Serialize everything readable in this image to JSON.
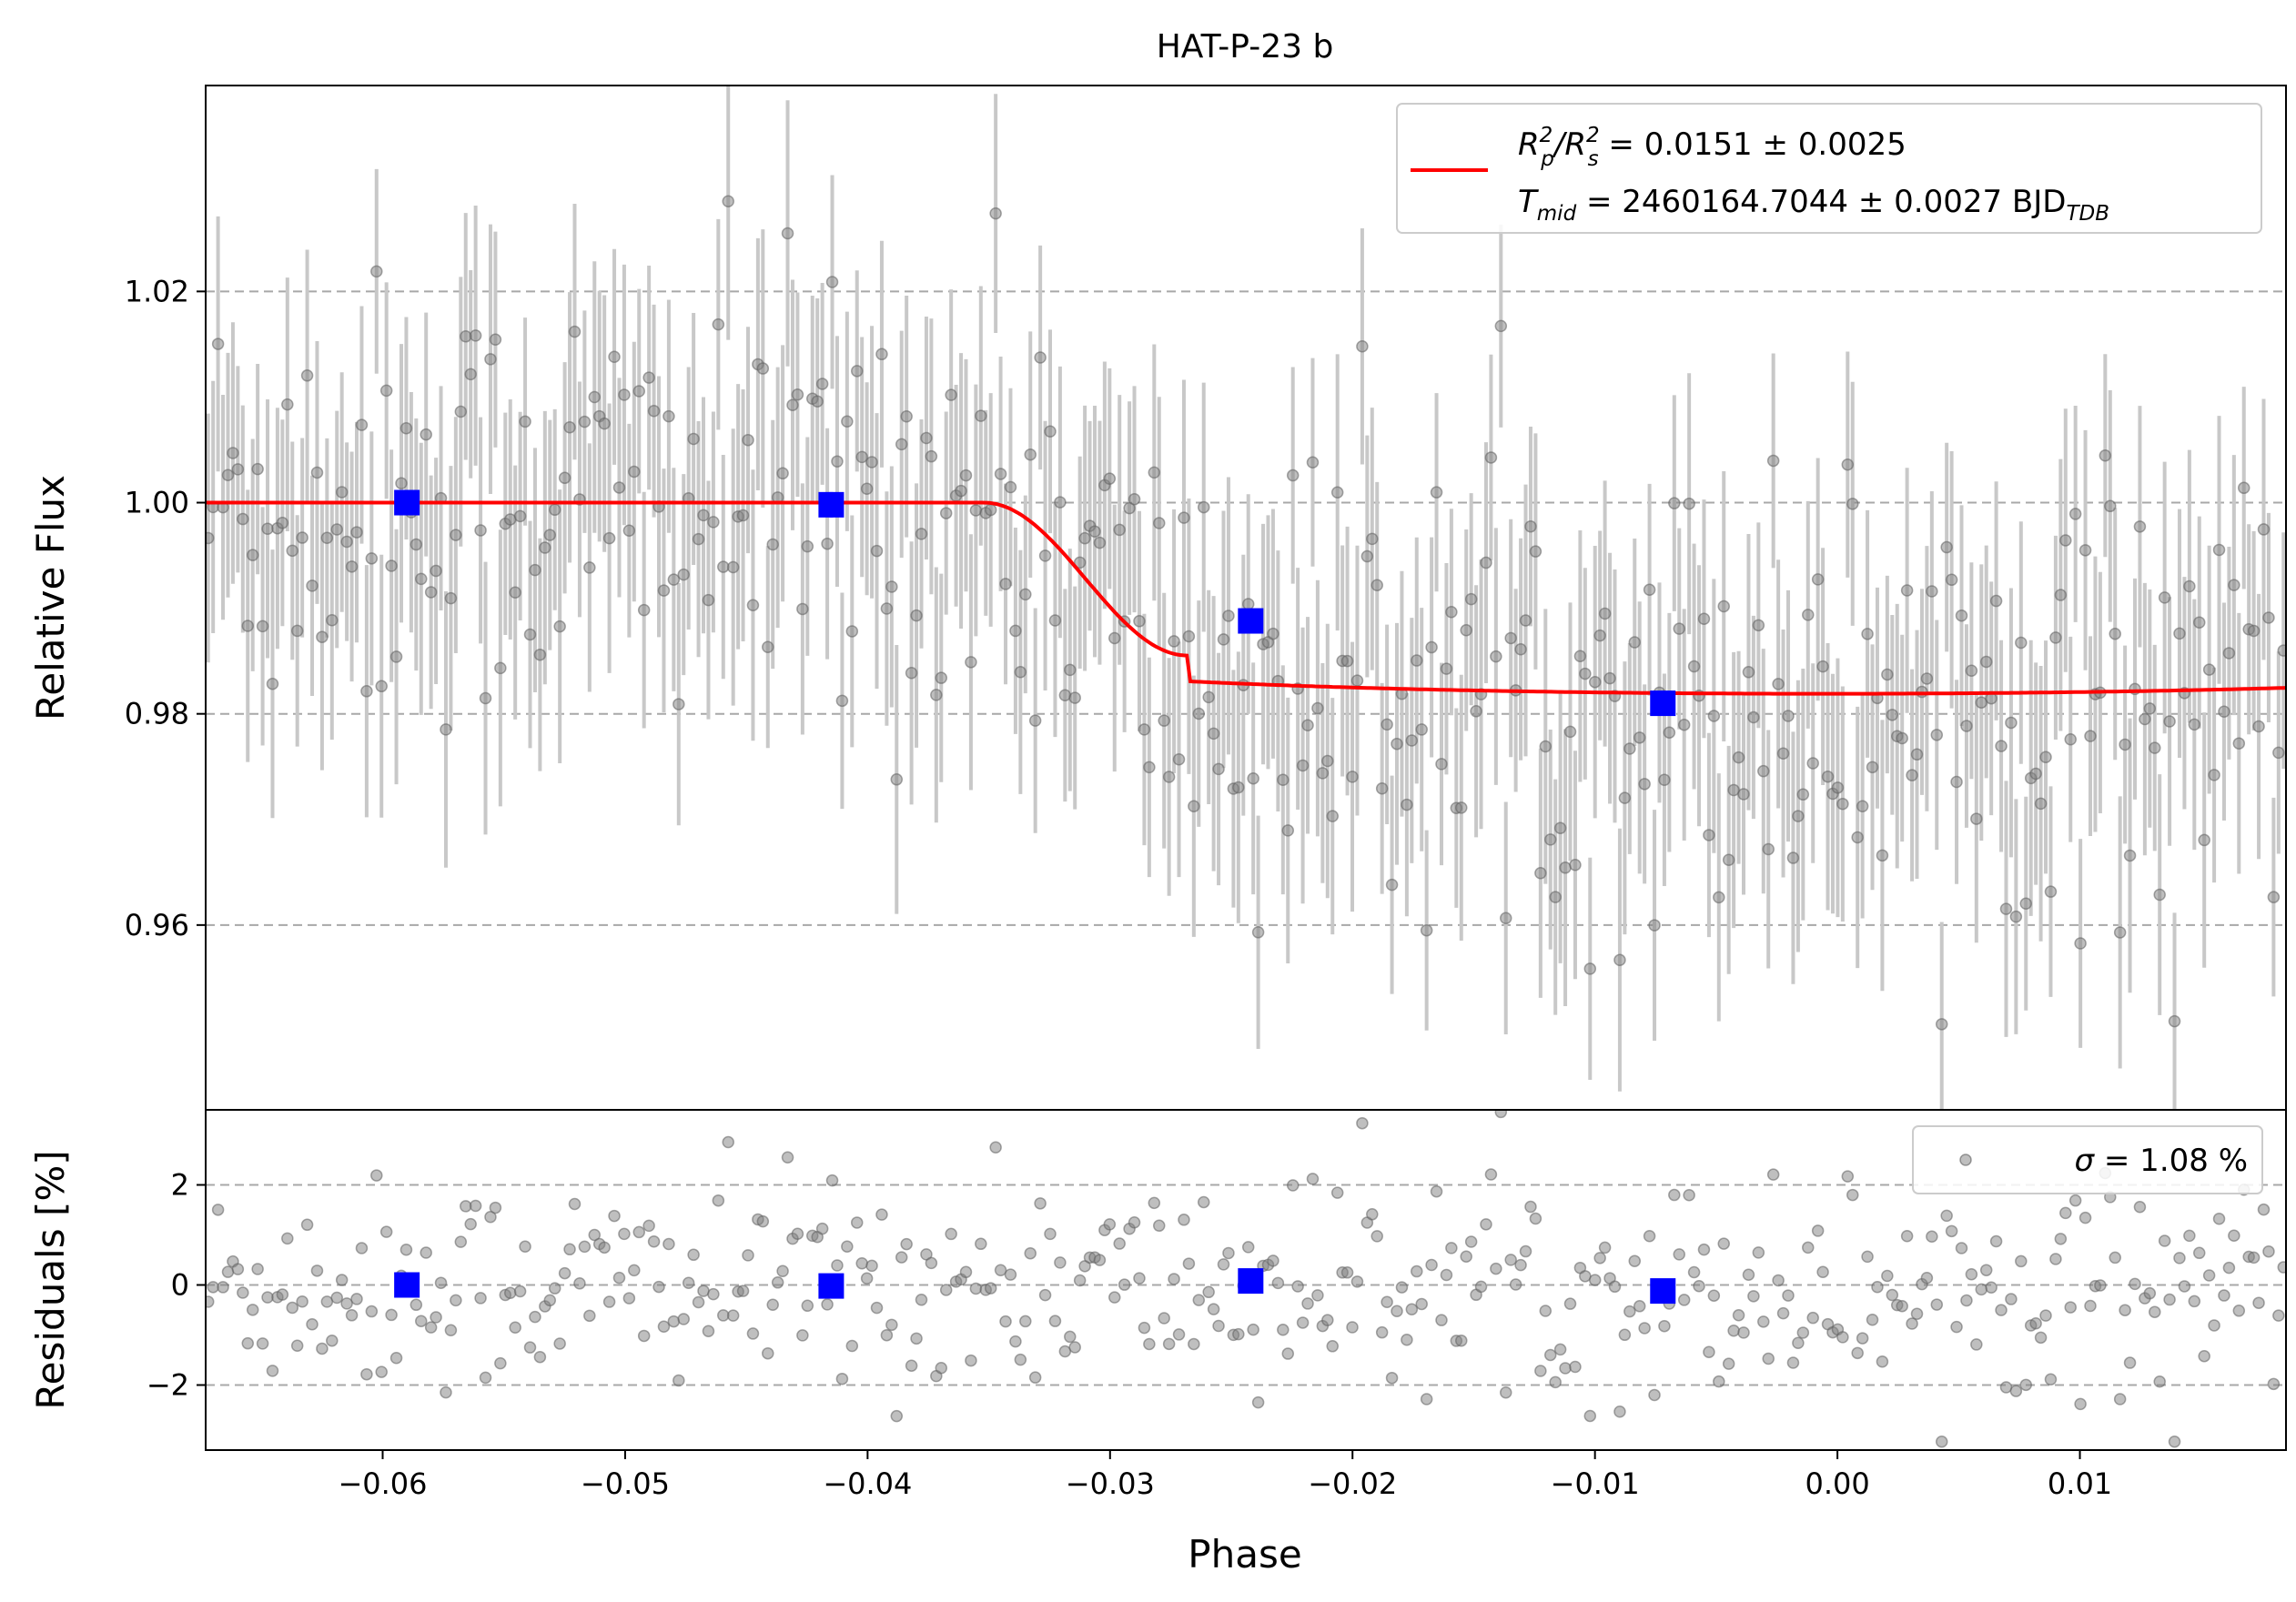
{
  "title": "HAT-P-23 b",
  "colors": {
    "model": "#ff0000",
    "binned": "#0000ff",
    "points": "#808080",
    "errorbars": "#c8c8c8",
    "grid": "#a8a8a8"
  },
  "chart_data": [
    {
      "type": "scatter",
      "panel": "top",
      "title": "HAT-P-23 b",
      "xlabel": "",
      "ylabel": "Relative Flux",
      "xlim": [
        -0.0673,
        0.0185
      ],
      "ylim": [
        0.9425,
        1.0395
      ],
      "yticks": [
        0.96,
        0.98,
        1.0,
        1.02
      ],
      "ytick_labels": [
        "0.96",
        "0.98",
        "1.00",
        "1.02"
      ],
      "grid": "horizontal dashed",
      "legend_position": "top-right",
      "legend": {
        "line1_main": "R",
        "line1_sub1": "p",
        "line1_sup1": "2",
        "line1_mid": "/R",
        "line1_sub2": "s",
        "line1_sup2": "2",
        "line1_rest": " = 0.0151 ± 0.0025",
        "line2_main": "T",
        "line2_sub": "mid",
        "line2_rest": " = 2460164.7044 ± 0.0027 BJD",
        "line2_sub2": "TDB"
      },
      "model": {
        "depth": 0.0181,
        "ingress_start": -0.0352,
        "ingress_end": -0.0268,
        "center": -0.0005,
        "baseline": 1.0
      },
      "raw_points": {
        "count": 420,
        "x_range": [
          -0.0673,
          0.0185
        ],
        "scatter_sigma": 0.0108,
        "errorbar_halfwidth": 0.011
      },
      "binned": [
        {
          "x": -0.059,
          "y": 1.0
        },
        {
          "x": -0.0415,
          "y": 0.9998
        },
        {
          "x": -0.0242,
          "y": 0.9888
        },
        {
          "x": -0.0072,
          "y": 0.981
        }
      ]
    },
    {
      "type": "scatter",
      "panel": "bottom",
      "xlabel": "Phase",
      "ylabel": "Residuals [%]",
      "xlim": [
        -0.0673,
        0.0185
      ],
      "ylim": [
        -3.3,
        3.5
      ],
      "xticks": [
        -0.06,
        -0.05,
        -0.04,
        -0.03,
        -0.02,
        -0.01,
        0.0,
        0.01
      ],
      "xtick_labels": [
        "−0.06",
        "−0.05",
        "−0.04",
        "−0.03",
        "−0.02",
        "−0.01",
        "0.00",
        "0.01"
      ],
      "yticks": [
        -2,
        0,
        2
      ],
      "ytick_labels": [
        "−2",
        "0",
        "2"
      ],
      "grid": "horizontal dashed",
      "legend_position": "top-right",
      "legend": {
        "sigma_symbol": "σ",
        "sigma_text": " = 1.08 %"
      },
      "binned": [
        {
          "x": -0.059,
          "y": 0.0
        },
        {
          "x": -0.0415,
          "y": -0.02
        },
        {
          "x": -0.0242,
          "y": 0.08
        },
        {
          "x": -0.0072,
          "y": -0.12
        }
      ]
    }
  ]
}
